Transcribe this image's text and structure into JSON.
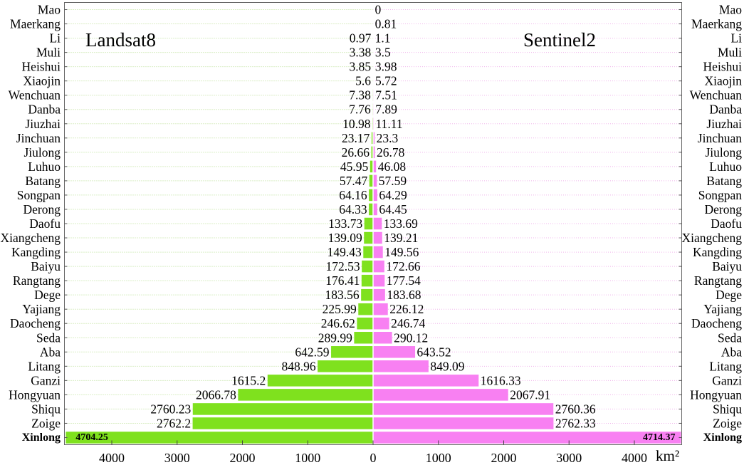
{
  "chart_data": {
    "type": "bar",
    "categories": [
      "Mao",
      "Maerkang",
      "Li",
      "Muli",
      "Heishui",
      "Xiaojin",
      "Wenchuan",
      "Danba",
      "Jiuzhai",
      "Jinchuan",
      "Jiulong",
      "Luhuo",
      "Batang",
      "Songpan",
      "Derong",
      "Daofu",
      "Xiangcheng",
      "Kangding",
      "Baiyu",
      "Rangtang",
      "Dege",
      "Yajiang",
      "Daocheng",
      "Seda",
      "Aba",
      "Litang",
      "Ganzi",
      "Hongyuan",
      "Shiqu",
      "Zoige",
      "Xinlong"
    ],
    "series": [
      {
        "name": "Landsat8",
        "color": "#7fe11e",
        "values": [
          null,
          null,
          0.97,
          3.38,
          3.85,
          5.6,
          7.38,
          7.76,
          10.98,
          23.17,
          26.66,
          45.95,
          57.47,
          64.16,
          64.33,
          133.73,
          139.09,
          149.43,
          172.53,
          176.41,
          183.56,
          225.99,
          246.62,
          289.99,
          642.59,
          848.96,
          1615.2,
          2066.78,
          2760.23,
          2762.2,
          4704.25
        ]
      },
      {
        "name": "Sentinel2",
        "color": "#f880f2",
        "values": [
          0,
          0.81,
          1.1,
          3.5,
          3.98,
          5.72,
          7.51,
          7.89,
          11.11,
          23.3,
          26.78,
          46.08,
          57.59,
          64.29,
          64.45,
          133.69,
          139.21,
          149.56,
          172.66,
          177.54,
          183.68,
          226.12,
          246.74,
          290.12,
          643.52,
          849.09,
          1616.33,
          2067.91,
          2760.36,
          2762.33,
          4714.37
        ]
      }
    ],
    "xlabel": "km²",
    "xlim": [
      -4725,
      4725
    ],
    "xticks": [
      -4000,
      -3000,
      -2000,
      -1000,
      0,
      1000,
      2000,
      3000,
      4000
    ],
    "xtick_labels": [
      "4000",
      "3000",
      "2000",
      "1000",
      "0",
      "1000",
      "2000",
      "3000",
      "4000"
    ],
    "grid": true,
    "grid_colors": {
      "left": "#b7de8e",
      "right": "#f0b5ec"
    }
  }
}
